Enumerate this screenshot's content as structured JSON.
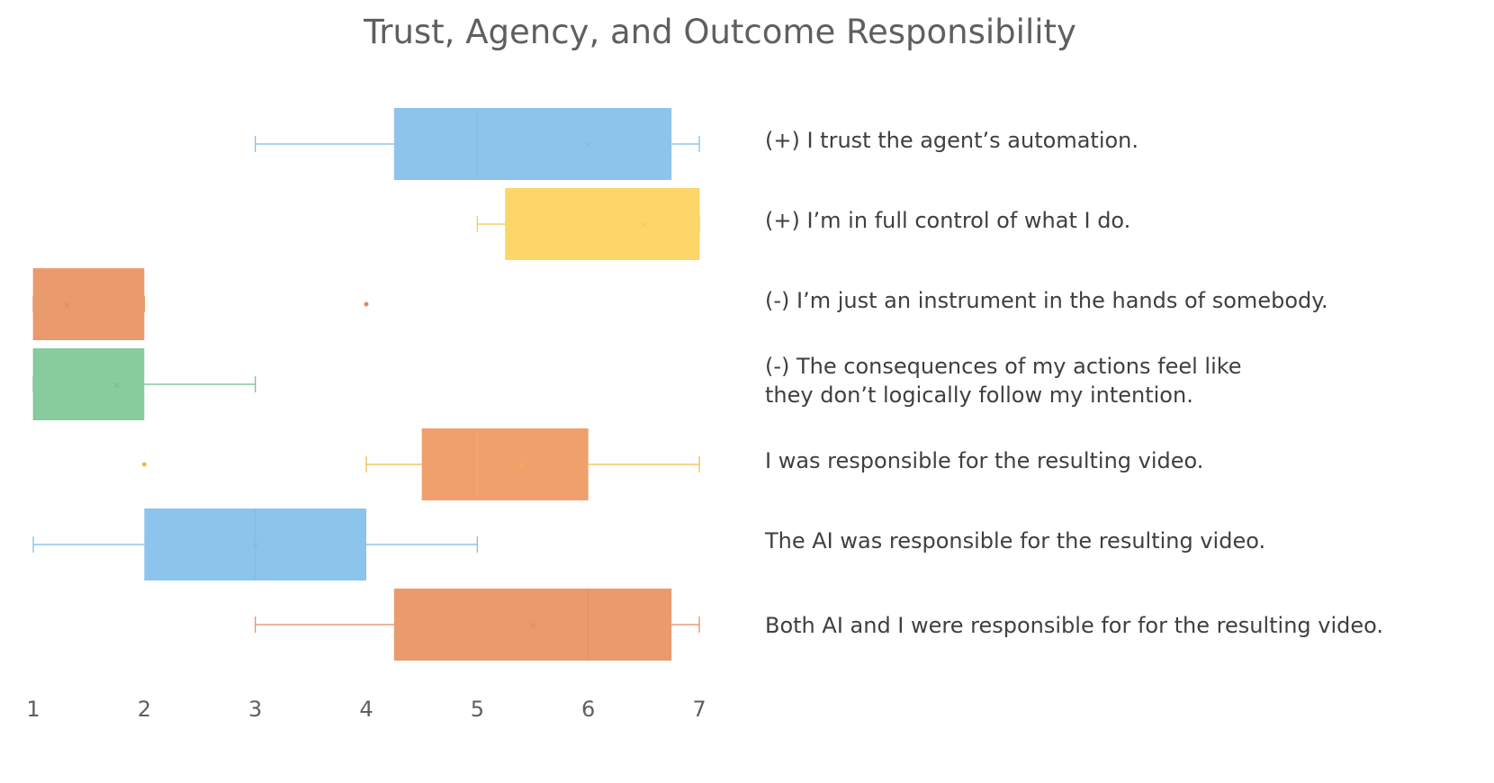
{
  "chart_data": {
    "type": "box",
    "title": "Trust, Agency, and Outcome Responsibility",
    "orientation": "horizontal",
    "xlim": [
      1,
      7
    ],
    "ticks": [
      1,
      2,
      3,
      4,
      5,
      6,
      7
    ],
    "series": [
      {
        "label": "(+) I trust the agent’s automation.",
        "whisker_low": 3,
        "q1": 4.25,
        "median": 5,
        "q3": 6.75,
        "whisker_high": 7,
        "mean": 6,
        "outliers": [],
        "color": "#8dc4eb",
        "line_color": "#7ab9e6"
      },
      {
        "label": "(+) I’m in full control of what I do.",
        "whisker_low": 5,
        "q1": 5.25,
        "median": 7,
        "q3": 7,
        "whisker_high": 7,
        "mean": 6.5,
        "outliers": [],
        "color": "#fdd66a",
        "line_color": "#f2c84b"
      },
      {
        "label": "(-) I’m just an instrument in the hands of somebody.",
        "whisker_low": 1,
        "q1": 1,
        "median": 1,
        "q3": 2,
        "whisker_high": 2,
        "mean": 1.3,
        "outliers": [
          4
        ],
        "color": "#e99b6d",
        "line_color": "#e4875b"
      },
      {
        "label": "(-) The consequences of my actions feel like they don’t logically follow my intention.",
        "whisker_low": 1,
        "q1": 1,
        "median": 1,
        "q3": 2,
        "whisker_high": 3,
        "mean": 1.75,
        "outliers": [],
        "color": "#88cb9c",
        "line_color": "#6fbd87"
      },
      {
        "label": "I was responsible for the resulting video.",
        "whisker_low": 4,
        "q1": 4.5,
        "median": 5,
        "q3": 6,
        "whisker_high": 7,
        "mean": 5.4,
        "outliers": [
          2
        ],
        "color": "#f0a06c",
        "line_color": "#f0b84a"
      },
      {
        "label": "The AI was responsible for the resulting video.",
        "whisker_low": 1,
        "q1": 2,
        "median": 3,
        "q3": 4,
        "whisker_high": 5,
        "mean": 3,
        "outliers": [],
        "color": "#8dc4eb",
        "line_color": "#7ab9e6"
      },
      {
        "label": "Both AI and I were responsible for for the resulting video.",
        "whisker_low": 3,
        "q1": 4.25,
        "median": 6,
        "q3": 6.75,
        "whisker_high": 7,
        "mean": 5.5,
        "outliers": [],
        "color": "#e99b6d",
        "line_color": "#e4875b"
      }
    ]
  }
}
